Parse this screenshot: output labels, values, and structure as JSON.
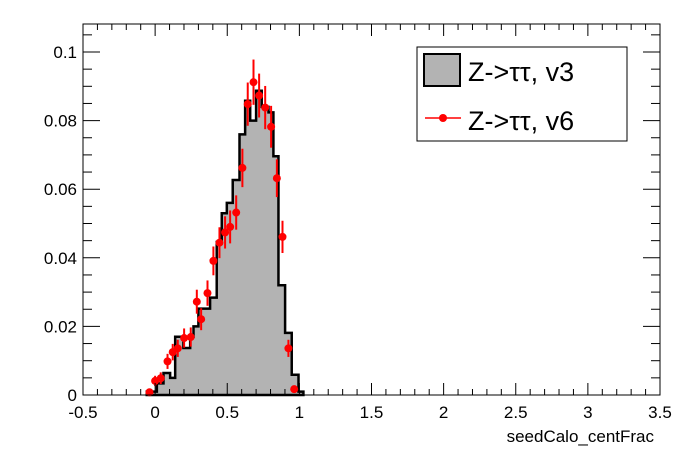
{
  "chart_data": {
    "type": "histogram",
    "title": "",
    "xlabel": "seedCalo_centFrac",
    "ylabel": "",
    "xlim": [
      -0.5,
      3.5
    ],
    "ylim": [
      0,
      0.108
    ],
    "x_ticks": [
      "-0.5",
      "0",
      "0.5",
      "1",
      "1.5",
      "2",
      "2.5",
      "3",
      "3.5"
    ],
    "x_tick_values": [
      -0.5,
      0,
      0.5,
      1,
      1.5,
      2,
      2.5,
      3,
      3.5
    ],
    "y_ticks": [
      "0",
      "0.02",
      "0.04",
      "0.06",
      "0.08",
      "0.1"
    ],
    "y_tick_values": [
      0,
      0.02,
      0.04,
      0.06,
      0.08,
      0.1
    ],
    "legend": {
      "position": "top-right",
      "entries": [
        "Z->ττ, v3",
        "Z->ττ, v6"
      ]
    },
    "series": [
      {
        "name": "Z->ττ, v3",
        "kind": "filled-histogram",
        "fill": "#b3b3b3",
        "edges": [
          -0.058,
          0.012,
          0.058,
          0.104,
          0.139,
          0.196,
          0.243,
          0.266,
          0.3,
          0.381,
          0.427,
          0.462,
          0.497,
          0.538,
          0.585,
          0.624,
          0.659,
          0.7,
          0.739,
          0.786,
          0.82,
          0.855,
          0.901,
          0.947,
          0.994,
          1.028
        ],
        "values": [
          0.001,
          0.0034,
          0.0064,
          0.005,
          0.017,
          0.0137,
          0.017,
          0.02,
          0.0252,
          0.0284,
          0.0446,
          0.053,
          0.056,
          0.0627,
          0.076,
          0.0858,
          0.08,
          0.0887,
          0.084,
          0.0824,
          0.0696,
          0.032,
          0.0181,
          0.0059,
          0.001
        ]
      },
      {
        "name": "Z->ττ, v6",
        "kind": "points-with-errors",
        "color": "#ff0000",
        "x": [
          -0.039,
          0.0,
          0.039,
          0.086,
          0.122,
          0.157,
          0.201,
          0.247,
          0.289,
          0.319,
          0.363,
          0.404,
          0.446,
          0.485,
          0.52,
          0.562,
          0.605,
          0.642,
          0.682,
          0.721,
          0.763,
          0.804,
          0.844,
          0.883,
          0.924,
          0.964
        ],
        "y": [
          0.0008,
          0.0041,
          0.0049,
          0.0098,
          0.0125,
          0.0136,
          0.0166,
          0.0169,
          0.0272,
          0.0221,
          0.0297,
          0.0391,
          0.0444,
          0.0474,
          0.049,
          0.0532,
          0.0662,
          0.0848,
          0.0912,
          0.0873,
          0.0838,
          0.0782,
          0.0632,
          0.0461,
          0.0136,
          0.0017
        ],
        "yerr": [
          0.0008,
          0.0015,
          0.0017,
          0.0022,
          0.0024,
          0.0025,
          0.0028,
          0.0028,
          0.0035,
          0.0032,
          0.0037,
          0.0042,
          0.0045,
          0.0047,
          0.0048,
          0.005,
          0.0056,
          0.0063,
          0.0066,
          0.0064,
          0.0063,
          0.0061,
          0.0055,
          0.0047,
          0.0025,
          0.0008
        ]
      }
    ]
  }
}
